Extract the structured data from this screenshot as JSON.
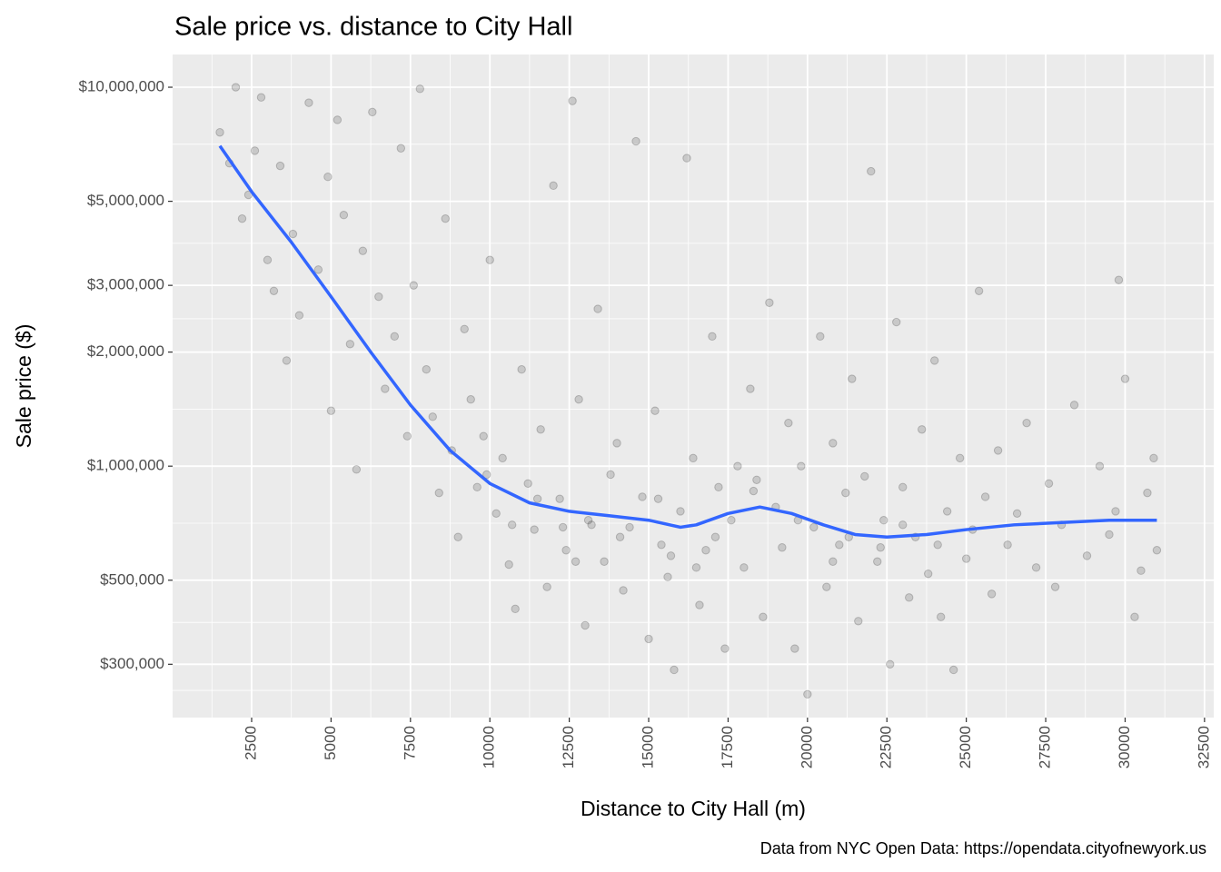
{
  "chart_data": {
    "type": "scatter",
    "title": "Sale price vs. distance to City Hall",
    "x_label": "Distance to City Hall (m)",
    "y_label": "Sale price ($)",
    "caption": "Data from NYC Open Data: https://opendata.cityofnewyork.us",
    "log_y": true,
    "grid": true,
    "xlim": [
      12,
      32790
    ],
    "ylim": [
      217000,
      12200000
    ],
    "xticks": [
      2500,
      5000,
      7500,
      10000,
      12500,
      15000,
      17500,
      20000,
      22500,
      25000,
      27500,
      30000,
      32500
    ],
    "xminor": [
      1250,
      3750,
      6250,
      8750,
      11250,
      13750,
      16250,
      18750,
      21250,
      23750,
      26250,
      28750,
      31250
    ],
    "yticks": [
      {
        "value": 300000,
        "label": "$300,000"
      },
      {
        "value": 500000,
        "label": "$500,000"
      },
      {
        "value": 1000000,
        "label": "$1,000,000"
      },
      {
        "value": 2000000,
        "label": "$2,000,000"
      },
      {
        "value": 3000000,
        "label": "$3,000,000"
      },
      {
        "value": 5000000,
        "label": "$5,000,000"
      },
      {
        "value": 10000000,
        "label": "$10,000,000"
      }
    ],
    "yminor": [
      256000,
      387000,
      707000,
      1414000,
      2449000,
      3873000,
      7071000
    ],
    "points": {
      "color": "#000000",
      "x": [
        1500,
        1800,
        2000,
        2200,
        2400,
        2600,
        2800,
        3000,
        3200,
        3400,
        3600,
        3800,
        4000,
        4300,
        4600,
        4900,
        5000,
        5200,
        5400,
        5600,
        5800,
        6000,
        6300,
        6500,
        6700,
        7000,
        7200,
        7400,
        7600,
        7800,
        8000,
        8200,
        8400,
        8600,
        8800,
        9000,
        9200,
        9400,
        9600,
        9800,
        10000,
        10200,
        10400,
        10600,
        10800,
        11000,
        11200,
        11400,
        11600,
        11800,
        12000,
        12200,
        12400,
        12600,
        12800,
        13000,
        13200,
        13400,
        13600,
        13800,
        14000,
        14200,
        14400,
        14600,
        14800,
        15000,
        15200,
        15400,
        15600,
        15800,
        16000,
        16200,
        16400,
        16600,
        16800,
        17000,
        17200,
        17400,
        17600,
        17800,
        18000,
        18200,
        18400,
        18600,
        18800,
        19000,
        19200,
        19400,
        19600,
        19800,
        20000,
        20200,
        20400,
        20600,
        20800,
        21000,
        21200,
        21400,
        21600,
        21800,
        22000,
        22200,
        22400,
        22600,
        22800,
        23000,
        23200,
        23400,
        23600,
        23800,
        24000,
        24200,
        24400,
        24600,
        24800,
        25000,
        25200,
        25400,
        25600,
        25800,
        26000,
        26300,
        26600,
        26900,
        27200,
        27600,
        28000,
        28400,
        28800,
        29200,
        29500,
        29800,
        30000,
        30300,
        30500,
        30700,
        30900,
        31000,
        29700,
        27800,
        24100,
        23000,
        21300,
        19700,
        18300,
        17100,
        16500,
        15300,
        14100,
        13100,
        12300,
        11500,
        10700,
        9900,
        12700,
        15700,
        20800,
        22300
      ],
      "y": [
        7600000,
        6300000,
        10000000,
        4500000,
        5200000,
        6800000,
        9400000,
        3500000,
        2900000,
        6200000,
        1900000,
        4100000,
        2500000,
        9100000,
        3300000,
        5800000,
        1400000,
        8200000,
        4600000,
        2100000,
        980000,
        3700000,
        8600000,
        2800000,
        1600000,
        2200000,
        6900000,
        1200000,
        3000000,
        9900000,
        1800000,
        1350000,
        850000,
        4500000,
        1100000,
        650000,
        2300000,
        1500000,
        880000,
        1200000,
        3500000,
        750000,
        1050000,
        550000,
        420000,
        1800000,
        900000,
        680000,
        1250000,
        480000,
        5500000,
        820000,
        600000,
        9200000,
        1500000,
        380000,
        700000,
        2600000,
        560000,
        950000,
        1150000,
        470000,
        690000,
        7200000,
        830000,
        350000,
        1400000,
        620000,
        510000,
        290000,
        760000,
        6500000,
        1050000,
        430000,
        600000,
        2200000,
        880000,
        330000,
        720000,
        1000000,
        540000,
        1600000,
        920000,
        400000,
        2700000,
        780000,
        610000,
        1300000,
        330000,
        1000000,
        250000,
        690000,
        2200000,
        480000,
        1150000,
        620000,
        850000,
        1700000,
        390000,
        940000,
        6000000,
        560000,
        720000,
        300000,
        2400000,
        880000,
        450000,
        650000,
        1250000,
        520000,
        1900000,
        400000,
        760000,
        290000,
        1050000,
        570000,
        680000,
        2900000,
        830000,
        460000,
        1100000,
        620000,
        750000,
        1300000,
        540000,
        900000,
        700000,
        1450000,
        580000,
        1000000,
        660000,
        3100000,
        1700000,
        400000,
        530000,
        850000,
        1050000,
        600000,
        760000,
        480000,
        620000,
        700000,
        650000,
        720000,
        860000,
        650000,
        540000,
        820000,
        650000,
        720000,
        690000,
        820000,
        700000,
        950000,
        560000,
        580000,
        560000,
        610000
      ]
    },
    "smooth": {
      "color": "#3366ff",
      "x": [
        1500,
        2500,
        3750,
        5000,
        6250,
        7500,
        8750,
        10000,
        11250,
        12500,
        13750,
        15000,
        16000,
        16500,
        17500,
        18500,
        19500,
        20500,
        21500,
        22500,
        23750,
        25000,
        26500,
        28000,
        29500,
        31000
      ],
      "y": [
        7000000,
        5300000,
        3900000,
        2800000,
        2000000,
        1450000,
        1100000,
        900000,
        800000,
        760000,
        740000,
        720000,
        690000,
        700000,
        750000,
        780000,
        750000,
        700000,
        660000,
        650000,
        660000,
        680000,
        700000,
        710000,
        720000,
        720000
      ]
    }
  }
}
